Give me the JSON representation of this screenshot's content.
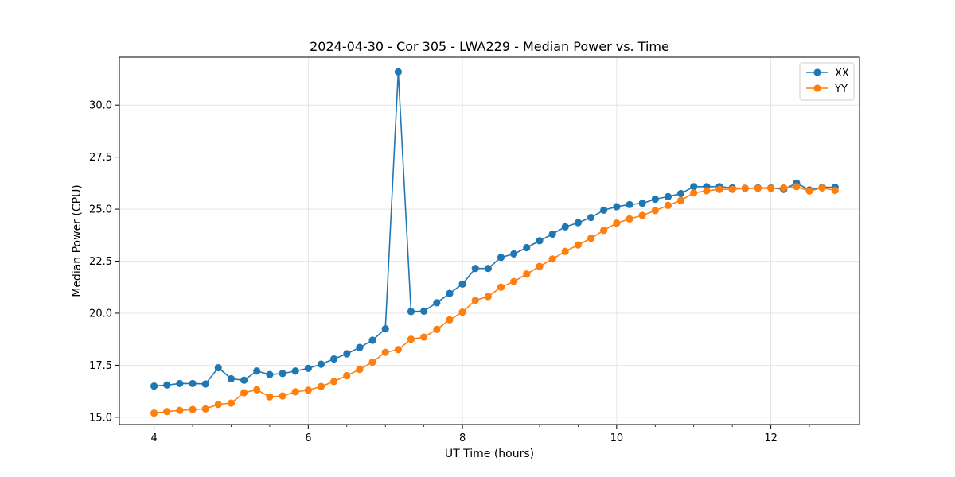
{
  "chart_data": {
    "type": "line",
    "title": "2024-04-30 - Cor 305 - LWA229 - Median Power vs. Time",
    "xlabel": "UT Time (hours)",
    "ylabel": "Median Power (CPU)",
    "xlim": [
      3.55,
      13.15
    ],
    "ylim": [
      14.65,
      32.3
    ],
    "xticks": [
      4,
      6,
      8,
      10,
      12
    ],
    "xtick_labels": [
      "4",
      "6",
      "8",
      "10",
      "12"
    ],
    "xminor_step": 0.5,
    "yticks": [
      15.0,
      17.5,
      20.0,
      22.5,
      25.0,
      27.5,
      30.0
    ],
    "ytick_labels": [
      "15.0",
      "17.5",
      "20.0",
      "22.5",
      "25.0",
      "27.5",
      "30.0"
    ],
    "grid": true,
    "legend_position": "top-right",
    "x": [
      4.0,
      4.167,
      4.333,
      4.5,
      4.667,
      4.833,
      5.0,
      5.167,
      5.333,
      5.5,
      5.667,
      5.833,
      6.0,
      6.167,
      6.333,
      6.5,
      6.667,
      6.833,
      7.0,
      7.167,
      7.333,
      7.5,
      7.667,
      7.833,
      8.0,
      8.167,
      8.333,
      8.5,
      8.667,
      8.833,
      9.0,
      9.167,
      9.333,
      9.5,
      9.667,
      9.833,
      10.0,
      10.167,
      10.333,
      10.5,
      10.667,
      10.833,
      11.0,
      11.167,
      11.333,
      11.5,
      11.667,
      11.833,
      12.0,
      12.167,
      12.333,
      12.5,
      12.667,
      12.833
    ],
    "series": [
      {
        "name": "XX",
        "color": "#1f77b4",
        "values": [
          16.5,
          16.55,
          16.62,
          16.62,
          16.6,
          17.38,
          16.85,
          16.78,
          17.22,
          17.05,
          17.1,
          17.22,
          17.35,
          17.55,
          17.8,
          18.05,
          18.35,
          18.7,
          19.25,
          31.6,
          20.08,
          20.1,
          20.5,
          20.95,
          21.4,
          22.15,
          22.15,
          22.68,
          22.85,
          23.15,
          23.48,
          23.8,
          24.15,
          24.35,
          24.6,
          24.95,
          25.12,
          25.22,
          25.28,
          25.48,
          25.6,
          25.75,
          26.08,
          26.08,
          26.08,
          26.02,
          26.0,
          26.02,
          26.02,
          25.95,
          26.25,
          25.92,
          26.05,
          26.05
        ]
      },
      {
        "name": "YY",
        "color": "#ff7f0e",
        "values": [
          15.2,
          15.27,
          15.33,
          15.37,
          15.4,
          15.62,
          15.68,
          16.18,
          16.32,
          15.98,
          16.02,
          16.22,
          16.3,
          16.48,
          16.72,
          17.0,
          17.3,
          17.65,
          18.12,
          18.25,
          18.75,
          18.85,
          19.22,
          19.68,
          20.05,
          20.62,
          20.8,
          21.25,
          21.52,
          21.88,
          22.25,
          22.6,
          22.97,
          23.28,
          23.6,
          23.98,
          24.33,
          24.53,
          24.7,
          24.93,
          25.18,
          25.42,
          25.78,
          25.88,
          25.95,
          25.95,
          26.0,
          26.0,
          26.0,
          26.02,
          26.08,
          25.87,
          26.02,
          25.9
        ]
      }
    ]
  }
}
